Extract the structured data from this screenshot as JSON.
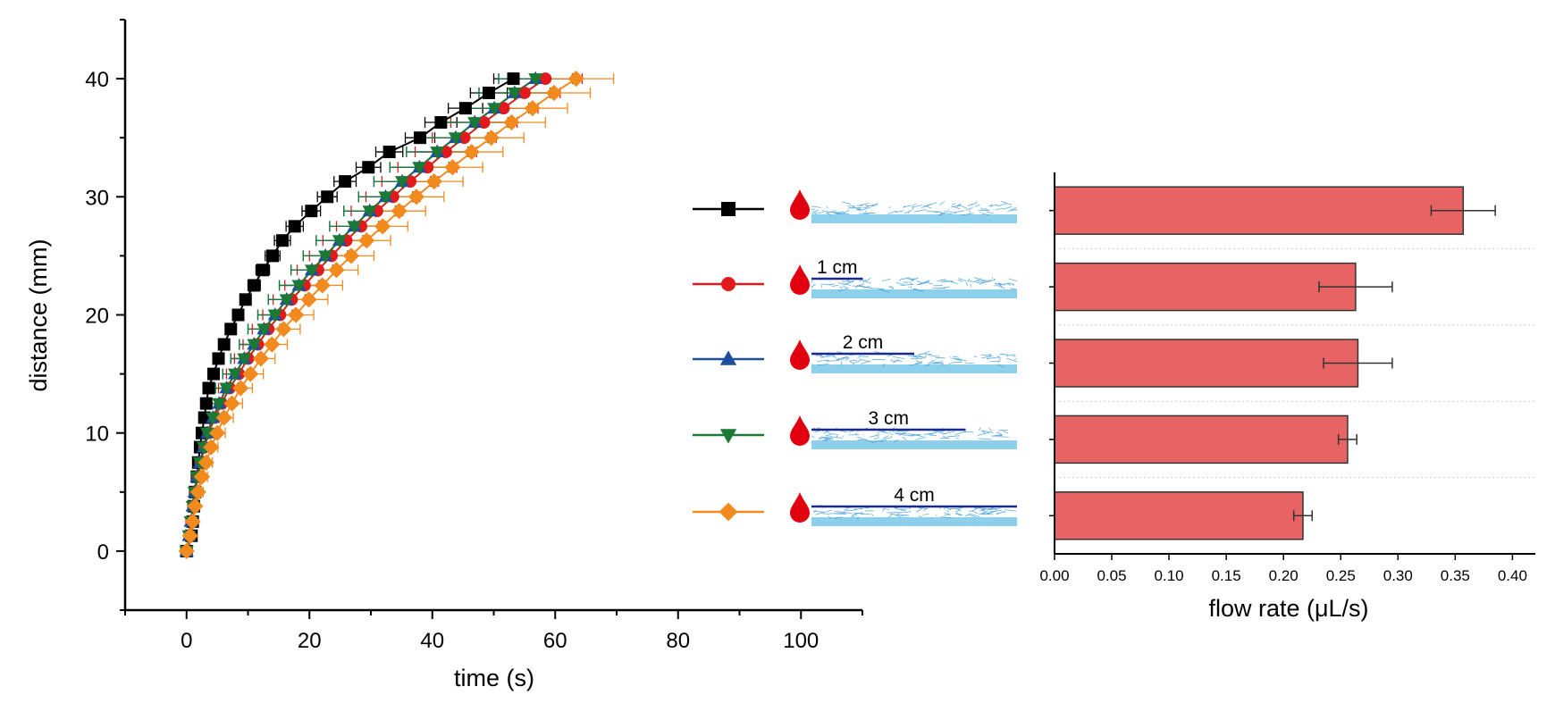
{
  "chart_data": [
    {
      "type": "line",
      "xlabel": "time (s)",
      "ylabel": "distance (mm)",
      "xlim": [
        -10,
        110
      ],
      "ylim": [
        -5,
        45
      ],
      "xticks": [
        0,
        20,
        40,
        60,
        80,
        100
      ],
      "yticks": [
        0,
        10,
        20,
        30,
        40
      ],
      "xtick_labels": [
        "0",
        "20",
        "40",
        "60",
        "80",
        "100"
      ],
      "ytick_labels": [
        "0",
        "10",
        "20",
        "30",
        "40"
      ],
      "grid": false,
      "legend_position": "right",
      "series": [
        {
          "color": "#000000",
          "marker": "square",
          "points": [
            [
              0,
              0
            ],
            [
              0.8,
              1.3
            ],
            [
              1.0,
              2.5
            ],
            [
              1.2,
              3.8
            ],
            [
              1.4,
              5.0
            ],
            [
              1.7,
              6.3
            ],
            [
              1.9,
              7.5
            ],
            [
              2.2,
              8.8
            ],
            [
              2.5,
              10.0
            ],
            [
              2.9,
              11.3
            ],
            [
              3.2,
              12.5
            ],
            [
              3.6,
              13.8
            ],
            [
              4.4,
              15.0
            ],
            [
              5.2,
              16.3
            ],
            [
              6.1,
              17.5
            ],
            [
              7.2,
              18.8
            ],
            [
              8.4,
              20.0
            ],
            [
              9.6,
              21.3
            ],
            [
              11.0,
              22.5
            ],
            [
              12.4,
              23.8
            ],
            [
              14.0,
              25.0
            ],
            [
              15.6,
              26.3
            ],
            [
              17.6,
              27.5
            ],
            [
              20.3,
              28.8
            ],
            [
              22.9,
              30.0
            ],
            [
              25.8,
              31.3
            ],
            [
              29.6,
              32.5
            ],
            [
              33.0,
              33.8
            ],
            [
              38.0,
              35.0
            ],
            [
              41.4,
              36.3
            ],
            [
              45.4,
              37.5
            ],
            [
              49.2,
              38.8
            ],
            [
              53.2,
              40.0
            ]
          ],
          "xerr": [
            0,
            0.3,
            0.3,
            0.3,
            0.3,
            0.3,
            0.3,
            0.3,
            0.4,
            0.4,
            0.4,
            0.5,
            0.5,
            0.6,
            0.6,
            0.7,
            0.8,
            0.9,
            1.0,
            1.1,
            1.2,
            1.3,
            1.4,
            1.5,
            1.6,
            1.8,
            2.0,
            2.2,
            2.4,
            2.6,
            2.8,
            3.0,
            3.2
          ]
        },
        {
          "color": "#e31a1c",
          "marker": "circle",
          "points": [
            [
              0,
              0
            ],
            [
              0.5,
              1.3
            ],
            [
              0.8,
              2.5
            ],
            [
              1.1,
              3.8
            ],
            [
              1.4,
              5.0
            ],
            [
              1.8,
              6.3
            ],
            [
              2.3,
              7.5
            ],
            [
              2.9,
              8.8
            ],
            [
              3.6,
              10.0
            ],
            [
              4.6,
              11.3
            ],
            [
              5.7,
              12.5
            ],
            [
              7.0,
              13.8
            ],
            [
              8.5,
              15.0
            ],
            [
              10.0,
              16.3
            ],
            [
              11.6,
              17.5
            ],
            [
              13.3,
              18.8
            ],
            [
              15.2,
              20.0
            ],
            [
              17.1,
              21.3
            ],
            [
              19.2,
              22.5
            ],
            [
              21.4,
              23.8
            ],
            [
              23.6,
              25.0
            ],
            [
              26.0,
              26.3
            ],
            [
              28.4,
              27.5
            ],
            [
              31.0,
              28.8
            ],
            [
              33.6,
              30.0
            ],
            [
              36.4,
              31.3
            ],
            [
              39.2,
              32.5
            ],
            [
              42.2,
              33.8
            ],
            [
              45.2,
              35.0
            ],
            [
              48.4,
              36.3
            ],
            [
              51.6,
              37.5
            ],
            [
              55.0,
              38.8
            ],
            [
              58.4,
              40.0
            ]
          ],
          "xerr": [
            0,
            0.5,
            0.5,
            0.6,
            0.7,
            0.8,
            0.9,
            1.0,
            1.2,
            1.4,
            1.6,
            1.8,
            2.0,
            2.2,
            2.4,
            2.6,
            2.8,
            3.0,
            3.2,
            3.4,
            3.6,
            3.8,
            4.0,
            4.2,
            4.4,
            4.6,
            4.8,
            5.0,
            5.2,
            5.4,
            5.6,
            5.8,
            6.0
          ]
        },
        {
          "color": "#1f4e9c",
          "marker": "triangle-up",
          "points": [
            [
              0,
              0
            ],
            [
              0.4,
              1.3
            ],
            [
              0.7,
              2.5
            ],
            [
              1.0,
              3.8
            ],
            [
              1.3,
              5.0
            ],
            [
              1.7,
              6.3
            ],
            [
              2.2,
              7.5
            ],
            [
              2.8,
              8.8
            ],
            [
              3.4,
              10.0
            ],
            [
              4.3,
              11.3
            ],
            [
              5.3,
              12.5
            ],
            [
              6.5,
              13.8
            ],
            [
              7.9,
              15.0
            ],
            [
              9.4,
              16.3
            ],
            [
              11.0,
              17.5
            ],
            [
              12.6,
              18.8
            ],
            [
              14.4,
              20.0
            ],
            [
              16.3,
              21.3
            ],
            [
              18.3,
              22.5
            ],
            [
              20.4,
              23.8
            ],
            [
              22.6,
              25.0
            ],
            [
              24.9,
              26.3
            ],
            [
              27.3,
              27.5
            ],
            [
              29.8,
              28.8
            ],
            [
              32.4,
              30.0
            ],
            [
              35.1,
              31.3
            ],
            [
              37.9,
              32.5
            ],
            [
              40.8,
              33.8
            ],
            [
              43.8,
              35.0
            ],
            [
              46.9,
              36.3
            ],
            [
              50.1,
              37.5
            ],
            [
              53.4,
              38.8
            ],
            [
              56.8,
              40.0
            ]
          ],
          "xerr": [
            0,
            0.5,
            0.5,
            0.6,
            0.7,
            0.8,
            0.9,
            1.0,
            1.2,
            1.4,
            1.6,
            1.8,
            2.0,
            2.2,
            2.4,
            2.6,
            2.8,
            3.0,
            3.2,
            3.4,
            3.6,
            3.8,
            4.0,
            4.2,
            4.4,
            4.6,
            4.8,
            5.0,
            5.2,
            5.4,
            5.6,
            5.8,
            6.0
          ]
        },
        {
          "color": "#1a7a35",
          "marker": "triangle-down",
          "points": [
            [
              0,
              0
            ],
            [
              0.4,
              1.3
            ],
            [
              0.7,
              2.5
            ],
            [
              1.0,
              3.8
            ],
            [
              1.3,
              5.0
            ],
            [
              1.7,
              6.3
            ],
            [
              2.2,
              7.5
            ],
            [
              2.8,
              8.8
            ],
            [
              3.4,
              10.0
            ],
            [
              4.3,
              11.3
            ],
            [
              5.3,
              12.5
            ],
            [
              6.5,
              13.8
            ],
            [
              7.9,
              15.0
            ],
            [
              9.4,
              16.3
            ],
            [
              11.0,
              17.5
            ],
            [
              12.6,
              18.8
            ],
            [
              14.4,
              20.0
            ],
            [
              16.3,
              21.3
            ],
            [
              18.3,
              22.5
            ],
            [
              20.4,
              23.8
            ],
            [
              22.6,
              25.0
            ],
            [
              24.9,
              26.3
            ],
            [
              27.3,
              27.5
            ],
            [
              29.8,
              28.8
            ],
            [
              32.4,
              30.0
            ],
            [
              35.1,
              31.3
            ],
            [
              37.9,
              32.5
            ],
            [
              40.8,
              33.8
            ],
            [
              43.8,
              35.0
            ],
            [
              46.9,
              36.3
            ],
            [
              50.1,
              37.5
            ],
            [
              53.4,
              38.8
            ],
            [
              56.8,
              40.0
            ]
          ],
          "xerr": [
            0,
            0.5,
            0.5,
            0.6,
            0.7,
            0.8,
            0.9,
            1.0,
            1.2,
            1.4,
            1.6,
            1.8,
            2.0,
            2.2,
            2.4,
            2.6,
            2.8,
            3.0,
            3.2,
            3.4,
            3.6,
            3.8,
            4.0,
            4.2,
            4.4,
            4.6,
            4.8,
            5.0,
            5.2,
            5.4,
            5.6,
            5.8,
            6.0
          ]
        },
        {
          "color": "#f28a1e",
          "marker": "diamond",
          "points": [
            [
              0,
              0
            ],
            [
              0.6,
              1.3
            ],
            [
              1.0,
              2.5
            ],
            [
              1.4,
              3.8
            ],
            [
              1.9,
              5.0
            ],
            [
              2.5,
              6.3
            ],
            [
              3.2,
              7.5
            ],
            [
              4.0,
              8.8
            ],
            [
              5.0,
              10.0
            ],
            [
              6.1,
              11.3
            ],
            [
              7.4,
              12.5
            ],
            [
              8.8,
              13.8
            ],
            [
              10.4,
              15.0
            ],
            [
              12.1,
              16.3
            ],
            [
              13.9,
              17.5
            ],
            [
              15.8,
              18.8
            ],
            [
              17.8,
              20.0
            ],
            [
              19.9,
              21.3
            ],
            [
              22.1,
              22.5
            ],
            [
              24.4,
              23.8
            ],
            [
              26.8,
              25.0
            ],
            [
              29.3,
              26.3
            ],
            [
              31.9,
              27.5
            ],
            [
              34.6,
              28.8
            ],
            [
              37.4,
              30.0
            ],
            [
              40.3,
              31.3
            ],
            [
              43.3,
              32.5
            ],
            [
              46.4,
              33.8
            ],
            [
              49.6,
              35.0
            ],
            [
              52.9,
              36.3
            ],
            [
              56.3,
              37.5
            ],
            [
              59.8,
              38.8
            ],
            [
              63.4,
              40.0
            ]
          ],
          "xerr": [
            0,
            0.5,
            0.6,
            0.7,
            0.8,
            0.9,
            1.0,
            1.1,
            1.3,
            1.5,
            1.7,
            1.9,
            2.1,
            2.3,
            2.5,
            2.7,
            2.9,
            3.1,
            3.3,
            3.5,
            3.7,
            3.9,
            4.1,
            4.3,
            4.5,
            4.7,
            4.9,
            5.1,
            5.3,
            5.5,
            5.7,
            5.9,
            6.1
          ]
        }
      ]
    },
    {
      "type": "bar",
      "orientation": "horizontal",
      "xlabel": "flow rate (μL/s)",
      "xlim": [
        0,
        0.42
      ],
      "xticks": [
        0.0,
        0.05,
        0.1,
        0.15,
        0.2,
        0.25,
        0.3,
        0.35,
        0.4
      ],
      "xtick_labels": [
        "0.00",
        "0.05",
        "0.10",
        "0.15",
        "0.20",
        "0.25",
        "0.30",
        "0.35",
        "0.40"
      ],
      "bar_color": "#e86464",
      "grid": "horizontal dotted",
      "values": [
        0.357,
        0.263,
        0.265,
        0.256,
        0.217
      ],
      "errors": [
        0.028,
        0.032,
        0.03,
        0.008,
        0.008
      ]
    }
  ],
  "legend": {
    "items": [
      {
        "color": "#000000",
        "marker": "square",
        "label": ""
      },
      {
        "color": "#e31a1c",
        "marker": "circle",
        "label": "1 cm",
        "cover_fraction": 0.25
      },
      {
        "color": "#1f4e9c",
        "marker": "triangle-up",
        "label": "2 cm",
        "cover_fraction": 0.5
      },
      {
        "color": "#1a7a35",
        "marker": "triangle-down",
        "label": "3 cm",
        "cover_fraction": 0.75
      },
      {
        "color": "#f28a1e",
        "marker": "diamond",
        "label": "4 cm",
        "cover_fraction": 1.0
      }
    ],
    "drop_color": "#e00010",
    "strip_color": "#8dd0ec",
    "fiber_color": "#3a9ad6",
    "cover_color": "#1a2a8c"
  }
}
